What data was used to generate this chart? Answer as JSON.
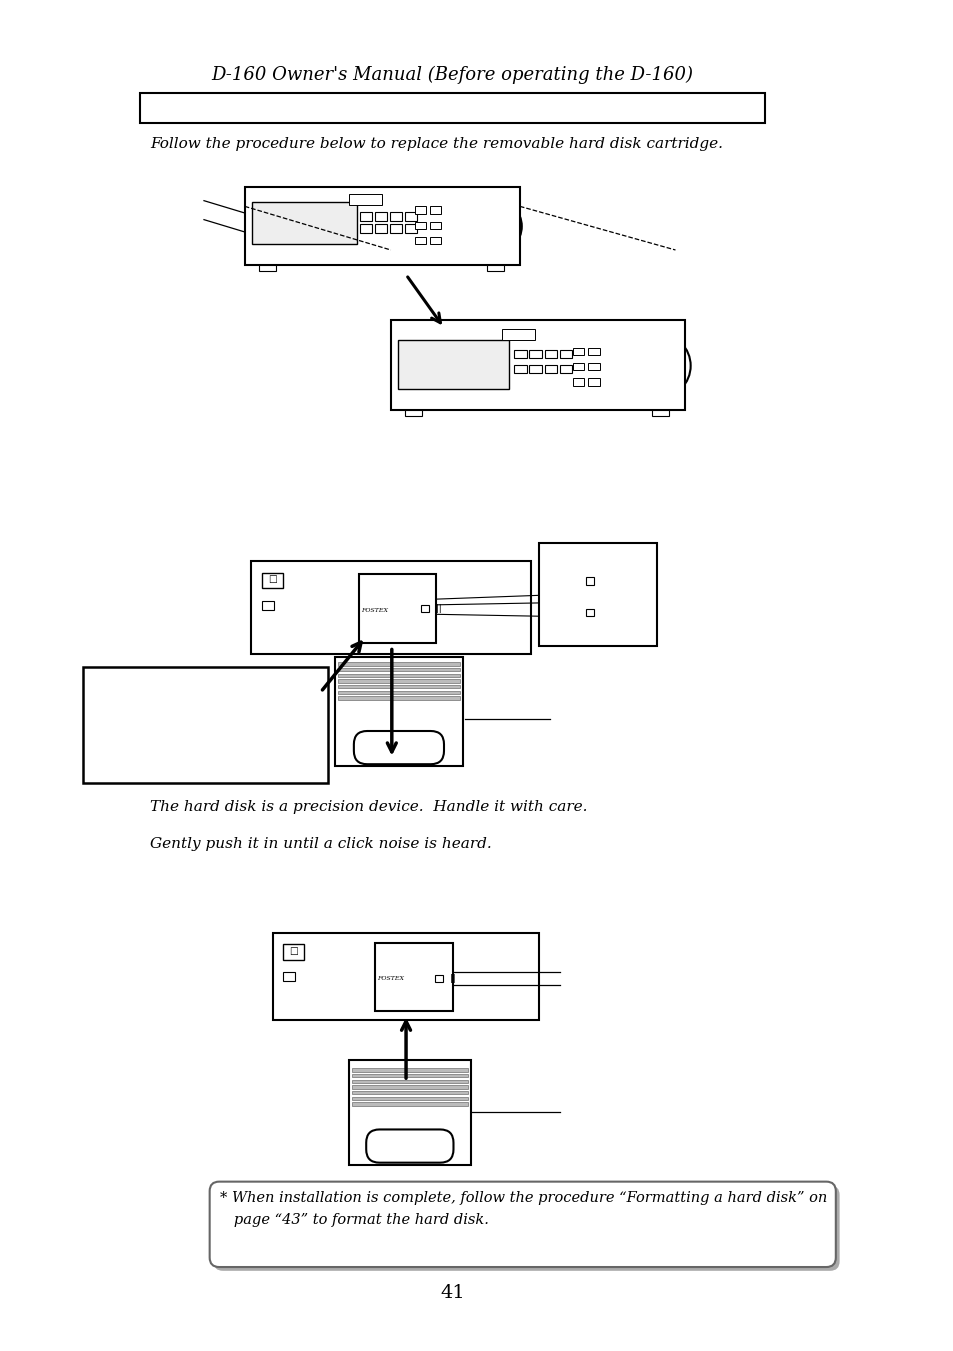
{
  "title": "D-160 Owner's Manual (Before operating the D-160)",
  "page_number": "41",
  "bg_color": "#ffffff",
  "text_color": "#000000",
  "follow_text": "Follow the procedure below to replace the removable hard disk cartridge.",
  "note1": "The hard disk is a precision device.  Handle it with care.",
  "note2": "Gently push it in until a click noise is heard.",
  "footer_note": "* When installation is complete, follow the procedure “Formatting a hard disk” on\n   page “43” to format the hard disk."
}
